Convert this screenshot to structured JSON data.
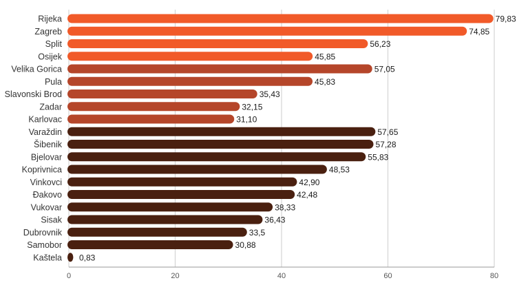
{
  "chart_data": {
    "type": "bar",
    "orientation": "horizontal",
    "categories": [
      "Rijeka",
      "Zagreb",
      "Split",
      "Osijek",
      "Velika Gorica",
      "Pula",
      "Slavonski Brod",
      "Zadar",
      "Karlovac",
      "Varaždin",
      "Šibenik",
      "Bjelovar",
      "Koprivnica",
      "Vinkovci",
      "Đakovo",
      "Vukovar",
      "Sisak",
      "Dubrovnik",
      "Samobor",
      "Kaštela"
    ],
    "values": [
      79.83,
      74.85,
      56.23,
      45.85,
      57.05,
      45.83,
      35.43,
      32.15,
      31.1,
      57.65,
      57.28,
      55.83,
      48.53,
      42.9,
      42.48,
      38.33,
      36.43,
      33.5,
      30.88,
      0.83
    ],
    "value_labels": [
      "79,83",
      "74,85",
      "56,23",
      "45,85",
      "57,05",
      "45,83",
      "35,43",
      "32,15",
      "31,10",
      "57,65",
      "57,28",
      "55,83",
      "48,53",
      "42,90",
      "42,48",
      "38,33",
      "36,43",
      "33,5",
      "30,88",
      "0,83"
    ],
    "bar_colors": [
      "#f15a29",
      "#f15a29",
      "#f15a29",
      "#f15a29",
      "#b5462a",
      "#b5462a",
      "#b5462a",
      "#b5462a",
      "#b5462a",
      "#4a2010",
      "#4a2010",
      "#4a2010",
      "#4a2010",
      "#4a2010",
      "#4a2010",
      "#4a2010",
      "#4a2010",
      "#4a2010",
      "#4a2010",
      "#4a2010"
    ],
    "xlim": [
      0,
      80
    ],
    "xticks": [
      0,
      20,
      40,
      60,
      80
    ],
    "title": "",
    "xlabel": "",
    "ylabel": "",
    "grid": "vertical",
    "legend": "none"
  }
}
